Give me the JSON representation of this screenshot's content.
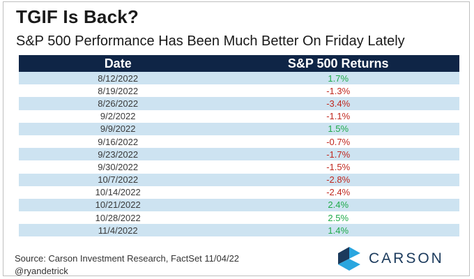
{
  "title": "TGIF Is Back?",
  "subtitle": "S&P 500 Performance Has Been Much Better On Friday Lately",
  "chart_data": {
    "type": "table",
    "columns": [
      "Date",
      "S&P 500 Returns"
    ],
    "rows": [
      {
        "date": "8/12/2022",
        "value": 1.7,
        "label": "1.7%"
      },
      {
        "date": "8/19/2022",
        "value": -1.3,
        "label": "-1.3%"
      },
      {
        "date": "8/26/2022",
        "value": -3.4,
        "label": "-3.4%"
      },
      {
        "date": "9/2/2022",
        "value": -1.1,
        "label": "-1.1%"
      },
      {
        "date": "9/9/2022",
        "value": 1.5,
        "label": "1.5%"
      },
      {
        "date": "9/16/2022",
        "value": -0.7,
        "label": "-0.7%"
      },
      {
        "date": "9/23/2022",
        "value": -1.7,
        "label": "-1.7%"
      },
      {
        "date": "9/30/2022",
        "value": -1.5,
        "label": "-1.5%"
      },
      {
        "date": "10/7/2022",
        "value": -2.8,
        "label": "-2.8%"
      },
      {
        "date": "10/14/2022",
        "value": -2.4,
        "label": "-2.4%"
      },
      {
        "date": "10/21/2022",
        "value": 2.4,
        "label": "2.4%"
      },
      {
        "date": "10/28/2022",
        "value": 2.5,
        "label": "2.5%"
      },
      {
        "date": "11/4/2022",
        "value": 1.4,
        "label": "1.4%"
      }
    ]
  },
  "colors": {
    "header_bg": "#0f2546",
    "stripe": "#cde3f1",
    "positive": "#1faa4a",
    "negative": "#c0281f"
  },
  "footer": {
    "source": "Source: Carson Investment Research, FactSet 11/04/22",
    "handle": "@ryandetrick"
  },
  "logo": {
    "text": "CARSON",
    "icon": "carson-chevron-icon"
  }
}
